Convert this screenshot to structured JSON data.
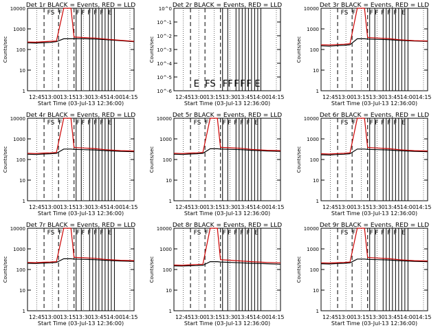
{
  "chart_data": [
    {
      "type": "line",
      "title": "Det 1r BLACK = Events, RED = LLD",
      "xlabel": "Start Time (03-Jul-13 12:36:00)",
      "ylabel": "Counts/sec",
      "yscale": "log",
      "ylim": [
        1,
        10000
      ],
      "yticks": [
        "1",
        "10",
        "100",
        "1000",
        "10000"
      ],
      "xticks": [
        "12:45",
        "13:00",
        "13:15",
        "13:30",
        "13:45",
        "14:00",
        "14:15"
      ],
      "xlim_minutes": [
        0,
        103
      ],
      "flag_letters": [
        "FS",
        "F",
        "F",
        "F",
        "F",
        "F",
        "F",
        "E"
      ],
      "series": [
        {
          "name": "Events",
          "color": "#000000",
          "values": [
            210,
            205,
            215,
            220,
            240,
            330,
            330,
            330,
            330,
            320,
            300,
            270,
            240
          ]
        },
        {
          "name": "LLD",
          "color": "#cc0000",
          "values": [
            230,
            225,
            240,
            250,
            260,
            10000,
            10000,
            400,
            380,
            360,
            320,
            280,
            250
          ]
        }
      ]
    },
    {
      "type": "line",
      "title": "Det 2r BLACK = Events, RED = LLD",
      "xlabel": "Start Time (03-Jul-13 12:36:00)",
      "ylabel": "Counts/sec",
      "yscale": "log",
      "ylim": [
        1e-06,
        1
      ],
      "yticks": [
        "10^0",
        "10^-1",
        "10^-2",
        "10^-3",
        "10^-4",
        "10^-5",
        "10^-6"
      ],
      "xticks": [
        "12:45",
        "13:00",
        "13:15",
        "13:30",
        "13:45",
        "14:00",
        "14:15"
      ],
      "xlim_minutes": [
        0,
        103
      ],
      "flag_letters": [
        "E",
        "FS",
        "F",
        "F",
        "F",
        "F",
        "F",
        "E"
      ],
      "series": []
    },
    {
      "type": "line",
      "title": "Det 3r BLACK = Events, RED = LLD",
      "xlabel": "Start Time (03-Jul-13 12:36:00)",
      "ylabel": "Counts/sec",
      "yscale": "log",
      "ylim": [
        1,
        10000
      ],
      "yticks": [
        "1",
        "10",
        "100",
        "1000",
        "10000"
      ],
      "xticks": [
        "12:45",
        "13:00",
        "13:15",
        "13:30",
        "13:45",
        "14:00",
        "14:15"
      ],
      "xlim_minutes": [
        0,
        103
      ],
      "flag_letters": [
        "FS",
        "F",
        "F",
        "F",
        "F",
        "F",
        "F",
        "E"
      ],
      "series": [
        {
          "name": "Events",
          "color": "#000000",
          "values": [
            150,
            145,
            155,
            160,
            170,
            330,
            330,
            320,
            310,
            300,
            280,
            260,
            250
          ]
        },
        {
          "name": "LLD",
          "color": "#cc0000",
          "values": [
            170,
            165,
            175,
            180,
            190,
            10000,
            10000,
            380,
            360,
            340,
            300,
            270,
            260
          ]
        }
      ]
    },
    {
      "type": "line",
      "title": "Det 4r BLACK = Events, RED = LLD",
      "xlabel": "Start Time (03-Jul-13 12:36:00)",
      "ylabel": "Counts/sec",
      "yscale": "log",
      "ylim": [
        1,
        10000
      ],
      "yticks": [
        "1",
        "10",
        "100",
        "1000",
        "10000"
      ],
      "xticks": [
        "12:45",
        "13:00",
        "13:15",
        "13:30",
        "13:45",
        "14:00",
        "14:15"
      ],
      "xlim_minutes": [
        0,
        103
      ],
      "flag_letters": [
        "FS",
        "F",
        "F",
        "F",
        "F",
        "F",
        "F",
        "E"
      ],
      "series": [
        {
          "name": "Events",
          "color": "#000000",
          "values": [
            180,
            175,
            185,
            190,
            200,
            320,
            320,
            310,
            300,
            290,
            270,
            250,
            240
          ]
        },
        {
          "name": "LLD",
          "color": "#cc0000",
          "values": [
            200,
            195,
            205,
            210,
            220,
            10000,
            10000,
            380,
            360,
            340,
            300,
            270,
            260
          ]
        }
      ]
    },
    {
      "type": "line",
      "title": "Det 5r BLACK = Events, RED = LLD",
      "xlabel": "Start Time (03-Jul-13 12:36:00)",
      "ylabel": "Counts/sec",
      "yscale": "log",
      "ylim": [
        1,
        10000
      ],
      "yticks": [
        "1",
        "10",
        "100",
        "1000",
        "10000"
      ],
      "xticks": [
        "12:45",
        "13:00",
        "13:15",
        "13:30",
        "13:45",
        "14:00",
        "14:15"
      ],
      "xlim_minutes": [
        0,
        103
      ],
      "flag_letters": [
        "FS",
        "F",
        "F",
        "F",
        "F",
        "F",
        "F",
        "E"
      ],
      "series": [
        {
          "name": "Events",
          "color": "#000000",
          "values": [
            180,
            175,
            185,
            190,
            200,
            330,
            330,
            320,
            310,
            300,
            280,
            260,
            250
          ]
        },
        {
          "name": "LLD",
          "color": "#cc0000",
          "values": [
            200,
            195,
            205,
            210,
            220,
            10000,
            10000,
            390,
            370,
            350,
            310,
            280,
            270
          ]
        }
      ]
    },
    {
      "type": "line",
      "title": "Det 6r BLACK = Events, RED = LLD",
      "xlabel": "Start Time (03-Jul-13 12:36:00)",
      "ylabel": "Counts/sec",
      "yscale": "log",
      "ylim": [
        1,
        10000
      ],
      "yticks": [
        "1",
        "10",
        "100",
        "1000",
        "10000"
      ],
      "xticks": [
        "12:45",
        "13:00",
        "13:15",
        "13:30",
        "13:45",
        "14:00",
        "14:15"
      ],
      "xlim_minutes": [
        0,
        103
      ],
      "flag_letters": [
        "FS",
        "F",
        "F",
        "F",
        "F",
        "F",
        "F",
        "E"
      ],
      "series": [
        {
          "name": "Events",
          "color": "#000000",
          "values": [
            170,
            165,
            175,
            180,
            190,
            320,
            320,
            310,
            300,
            290,
            270,
            250,
            240
          ]
        },
        {
          "name": "LLD",
          "color": "#cc0000",
          "values": [
            190,
            185,
            195,
            200,
            210,
            10000,
            10000,
            380,
            360,
            340,
            300,
            270,
            260
          ]
        }
      ]
    },
    {
      "type": "line",
      "title": "Det 7r BLACK = Events, RED = LLD",
      "xlabel": "Start Time (03-Jul-13 12:36:00)",
      "ylabel": "Counts/sec",
      "yscale": "log",
      "ylim": [
        1,
        10000
      ],
      "yticks": [
        "1",
        "10",
        "100",
        "1000",
        "10000"
      ],
      "xticks": [
        "12:45",
        "13:00",
        "13:15",
        "13:30",
        "13:45",
        "14:00",
        "14:15"
      ],
      "xlim_minutes": [
        0,
        103
      ],
      "flag_letters": [
        "FS",
        "F",
        "F",
        "F",
        "F",
        "F",
        "F",
        "E"
      ],
      "series": [
        {
          "name": "Events",
          "color": "#000000",
          "values": [
            200,
            195,
            205,
            210,
            220,
            330,
            330,
            320,
            310,
            300,
            280,
            260,
            250
          ]
        },
        {
          "name": "LLD",
          "color": "#cc0000",
          "values": [
            220,
            215,
            225,
            230,
            240,
            10000,
            10000,
            390,
            370,
            350,
            310,
            280,
            270
          ]
        }
      ]
    },
    {
      "type": "line",
      "title": "Det 8r BLACK = Events, RED = LLD",
      "xlabel": "Start Time (03-Jul-13 12:36:00)",
      "ylabel": "Counts/sec",
      "yscale": "log",
      "ylim": [
        1,
        10000
      ],
      "yticks": [
        "1",
        "10",
        "100",
        "1000",
        "10000"
      ],
      "xticks": [
        "12:45",
        "13:00",
        "13:15",
        "13:30",
        "13:45",
        "14:00",
        "14:15"
      ],
      "xlim_minutes": [
        0,
        103
      ],
      "flag_letters": [
        "FS",
        "F",
        "F",
        "F",
        "F",
        "F",
        "F",
        "E"
      ],
      "series": [
        {
          "name": "Events",
          "color": "#000000",
          "values": [
            150,
            148,
            152,
            155,
            160,
            240,
            240,
            230,
            220,
            210,
            200,
            190,
            180
          ]
        },
        {
          "name": "LLD",
          "color": "#cc0000",
          "values": [
            165,
            160,
            170,
            175,
            180,
            10000,
            10000,
            300,
            280,
            260,
            240,
            220,
            210
          ]
        }
      ]
    },
    {
      "type": "line",
      "title": "Det 9r BLACK = Events, RED = LLD",
      "xlabel": "Start Time (03-Jul-13 12:36:00)",
      "ylabel": "Counts/sec",
      "yscale": "log",
      "ylim": [
        1,
        10000
      ],
      "yticks": [
        "1",
        "10",
        "100",
        "1000",
        "10000"
      ],
      "xticks": [
        "12:45",
        "13:00",
        "13:15",
        "13:30",
        "13:45",
        "14:00",
        "14:15"
      ],
      "xlim_minutes": [
        0,
        103
      ],
      "flag_letters": [
        "FS",
        "F",
        "F",
        "F",
        "F",
        "F",
        "F",
        "E"
      ],
      "series": [
        {
          "name": "Events",
          "color": "#000000",
          "values": [
            190,
            185,
            195,
            200,
            210,
            320,
            320,
            310,
            300,
            290,
            270,
            250,
            240
          ]
        },
        {
          "name": "LLD",
          "color": "#cc0000",
          "values": [
            210,
            205,
            215,
            220,
            230,
            10000,
            10000,
            380,
            360,
            340,
            300,
            270,
            260
          ]
        }
      ]
    }
  ],
  "x_minutes": [
    0,
    8,
    16,
    22,
    28,
    35,
    42,
    45,
    55,
    65,
    75,
    90,
    103
  ],
  "dashed_lines_minutes": [
    16,
    30,
    45
  ],
  "solid_lines_minutes": [
    47,
    52,
    60,
    63,
    66,
    69,
    72,
    75,
    78,
    81,
    84
  ]
}
